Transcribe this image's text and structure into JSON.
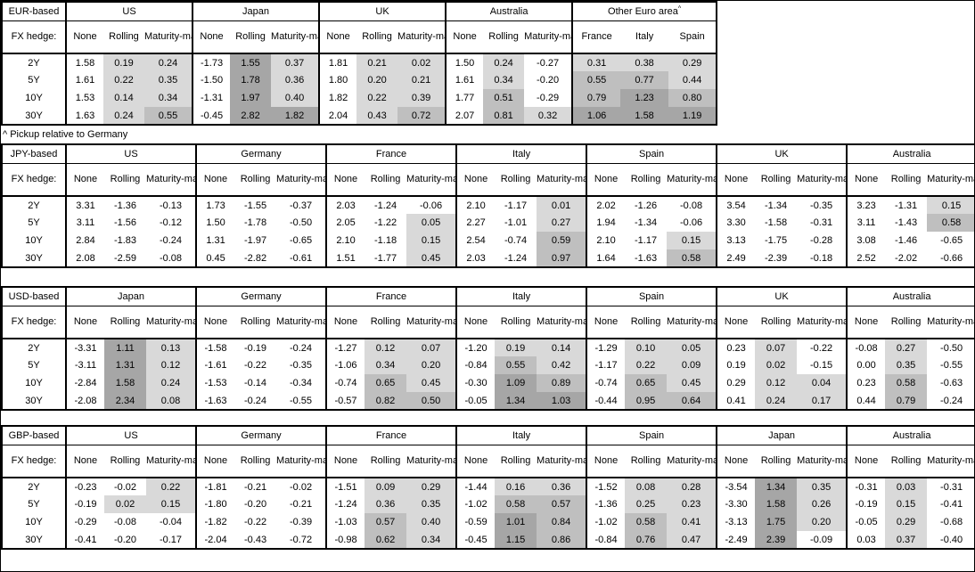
{
  "note": "^ Pickup relative to Germany",
  "labels": {
    "fx_hedge": "FX hedge:",
    "tenors": [
      "2Y",
      "5Y",
      "10Y",
      "30Y"
    ],
    "sub_columns": [
      "None",
      "Rolling",
      "Maturity-matched"
    ]
  },
  "heatmap": {
    "colors": {
      "light": "#d9d9d9",
      "medium": "#bfbfbf",
      "dark": "#a6a6a6",
      "none": "#ffffff"
    },
    "thresholds": {
      "light": 0,
      "medium": 0.5,
      "dark": 1.0
    },
    "rule": "Rolling, Maturity-matched and Other-Euro-area cells shaded by value; None column unshaded"
  },
  "chart_data": [
    {
      "type": "heatmap-table",
      "base": "EUR-based",
      "groups": [
        {
          "name": "US",
          "rows": [
            [
              "1.58",
              "0.19",
              "0.24"
            ],
            [
              "1.61",
              "0.22",
              "0.35"
            ],
            [
              "1.53",
              "0.14",
              "0.34"
            ],
            [
              "1.63",
              "0.24",
              "0.55"
            ]
          ]
        },
        {
          "name": "Japan",
          "rows": [
            [
              "-1.73",
              "1.55",
              "0.37"
            ],
            [
              "-1.50",
              "1.78",
              "0.36"
            ],
            [
              "-1.31",
              "1.97",
              "0.40"
            ],
            [
              "-0.45",
              "2.82",
              "1.82"
            ]
          ]
        },
        {
          "name": "UK",
          "rows": [
            [
              "1.81",
              "0.21",
              "0.02"
            ],
            [
              "1.80",
              "0.20",
              "0.21"
            ],
            [
              "1.82",
              "0.22",
              "0.39"
            ],
            [
              "2.04",
              "0.43",
              "0.72"
            ]
          ]
        },
        {
          "name": "Australia",
          "rows": [
            [
              "1.50",
              "0.24",
              "-0.27"
            ],
            [
              "1.61",
              "0.34",
              "-0.20"
            ],
            [
              "1.77",
              "0.51",
              "-0.29"
            ],
            [
              "2.07",
              "0.81",
              "0.32"
            ]
          ]
        },
        {
          "name": "Other Euro area",
          "footnote_marker": "^",
          "columns": [
            "France",
            "Italy",
            "Spain"
          ],
          "rows": [
            [
              "0.31",
              "0.38",
              "0.29"
            ],
            [
              "0.55",
              "0.77",
              "0.44"
            ],
            [
              "0.79",
              "1.23",
              "0.80"
            ],
            [
              "1.06",
              "1.58",
              "1.19"
            ]
          ]
        }
      ]
    },
    {
      "type": "heatmap-table",
      "base": "JPY-based",
      "groups": [
        {
          "name": "US",
          "rows": [
            [
              "3.31",
              "-1.36",
              "-0.13"
            ],
            [
              "3.11",
              "-1.56",
              "-0.12"
            ],
            [
              "2.84",
              "-1.83",
              "-0.24"
            ],
            [
              "2.08",
              "-2.59",
              "-0.08"
            ]
          ]
        },
        {
          "name": "Germany",
          "rows": [
            [
              "1.73",
              "-1.55",
              "-0.37"
            ],
            [
              "1.50",
              "-1.78",
              "-0.50"
            ],
            [
              "1.31",
              "-1.97",
              "-0.65"
            ],
            [
              "0.45",
              "-2.82",
              "-0.61"
            ]
          ]
        },
        {
          "name": "France",
          "rows": [
            [
              "2.03",
              "-1.24",
              "-0.06"
            ],
            [
              "2.05",
              "-1.22",
              "0.05"
            ],
            [
              "2.10",
              "-1.18",
              "0.15"
            ],
            [
              "1.51",
              "-1.77",
              "0.45"
            ]
          ]
        },
        {
          "name": "Italy",
          "rows": [
            [
              "2.10",
              "-1.17",
              "0.01"
            ],
            [
              "2.27",
              "-1.01",
              "0.27"
            ],
            [
              "2.54",
              "-0.74",
              "0.59"
            ],
            [
              "2.03",
              "-1.24",
              "0.97"
            ]
          ]
        },
        {
          "name": "Spain",
          "rows": [
            [
              "2.02",
              "-1.26",
              "-0.08"
            ],
            [
              "1.94",
              "-1.34",
              "-0.06"
            ],
            [
              "2.10",
              "-1.17",
              "0.15"
            ],
            [
              "1.64",
              "-1.63",
              "0.58"
            ]
          ]
        },
        {
          "name": "UK",
          "rows": [
            [
              "3.54",
              "-1.34",
              "-0.35"
            ],
            [
              "3.30",
              "-1.58",
              "-0.31"
            ],
            [
              "3.13",
              "-1.75",
              "-0.28"
            ],
            [
              "2.49",
              "-2.39",
              "-0.18"
            ]
          ]
        },
        {
          "name": "Australia",
          "rows": [
            [
              "3.23",
              "-1.31",
              "0.15"
            ],
            [
              "3.11",
              "-1.43",
              "0.58"
            ],
            [
              "3.08",
              "-1.46",
              "-0.65"
            ],
            [
              "2.52",
              "-2.02",
              "-0.66"
            ]
          ]
        }
      ]
    },
    {
      "type": "heatmap-table",
      "base": "USD-based",
      "groups": [
        {
          "name": "Japan",
          "rows": [
            [
              "-3.31",
              "1.11",
              "0.13"
            ],
            [
              "-3.11",
              "1.31",
              "0.12"
            ],
            [
              "-2.84",
              "1.58",
              "0.24"
            ],
            [
              "-2.08",
              "2.34",
              "0.08"
            ]
          ]
        },
        {
          "name": "Germany",
          "rows": [
            [
              "-1.58",
              "-0.19",
              "-0.24"
            ],
            [
              "-1.61",
              "-0.22",
              "-0.35"
            ],
            [
              "-1.53",
              "-0.14",
              "-0.34"
            ],
            [
              "-1.63",
              "-0.24",
              "-0.55"
            ]
          ]
        },
        {
          "name": "France",
          "rows": [
            [
              "-1.27",
              "0.12",
              "0.07"
            ],
            [
              "-1.06",
              "0.34",
              "0.20"
            ],
            [
              "-0.74",
              "0.65",
              "0.45"
            ],
            [
              "-0.57",
              "0.82",
              "0.50"
            ]
          ]
        },
        {
          "name": "Italy",
          "rows": [
            [
              "-1.20",
              "0.19",
              "0.14"
            ],
            [
              "-0.84",
              "0.55",
              "0.42"
            ],
            [
              "-0.30",
              "1.09",
              "0.89"
            ],
            [
              "-0.05",
              "1.34",
              "1.03"
            ]
          ]
        },
        {
          "name": "Spain",
          "rows": [
            [
              "-1.29",
              "0.10",
              "0.05"
            ],
            [
              "-1.17",
              "0.22",
              "0.09"
            ],
            [
              "-0.74",
              "0.65",
              "0.45"
            ],
            [
              "-0.44",
              "0.95",
              "0.64"
            ]
          ]
        },
        {
          "name": "UK",
          "rows": [
            [
              "0.23",
              "0.07",
              "-0.22"
            ],
            [
              "0.19",
              "0.02",
              "-0.15"
            ],
            [
              "0.29",
              "0.12",
              "0.04"
            ],
            [
              "0.41",
              "0.24",
              "0.17"
            ]
          ]
        },
        {
          "name": "Australia",
          "rows": [
            [
              "-0.08",
              "0.27",
              "-0.50"
            ],
            [
              "0.00",
              "0.35",
              "-0.55"
            ],
            [
              "0.23",
              "0.58",
              "-0.63"
            ],
            [
              "0.44",
              "0.79",
              "-0.24"
            ]
          ]
        }
      ]
    },
    {
      "type": "heatmap-table",
      "base": "GBP-based",
      "groups": [
        {
          "name": "US",
          "rows": [
            [
              "-0.23",
              "-0.02",
              "0.22"
            ],
            [
              "-0.19",
              "0.02",
              "0.15"
            ],
            [
              "-0.29",
              "-0.08",
              "-0.04"
            ],
            [
              "-0.41",
              "-0.20",
              "-0.17"
            ]
          ]
        },
        {
          "name": "Germany",
          "rows": [
            [
              "-1.81",
              "-0.21",
              "-0.02"
            ],
            [
              "-1.80",
              "-0.20",
              "-0.21"
            ],
            [
              "-1.82",
              "-0.22",
              "-0.39"
            ],
            [
              "-2.04",
              "-0.43",
              "-0.72"
            ]
          ]
        },
        {
          "name": "France",
          "rows": [
            [
              "-1.51",
              "0.09",
              "0.29"
            ],
            [
              "-1.24",
              "0.36",
              "0.35"
            ],
            [
              "-1.03",
              "0.57",
              "0.40"
            ],
            [
              "-0.98",
              "0.62",
              "0.34"
            ]
          ]
        },
        {
          "name": "Italy",
          "rows": [
            [
              "-1.44",
              "0.16",
              "0.36"
            ],
            [
              "-1.02",
              "0.58",
              "0.57"
            ],
            [
              "-0.59",
              "1.01",
              "0.84"
            ],
            [
              "-0.45",
              "1.15",
              "0.86"
            ]
          ]
        },
        {
          "name": "Spain",
          "rows": [
            [
              "-1.52",
              "0.08",
              "0.28"
            ],
            [
              "-1.36",
              "0.25",
              "0.23"
            ],
            [
              "-1.02",
              "0.58",
              "0.41"
            ],
            [
              "-0.84",
              "0.76",
              "0.47"
            ]
          ]
        },
        {
          "name": "Japan",
          "rows": [
            [
              "-3.54",
              "1.34",
              "0.35"
            ],
            [
              "-3.30",
              "1.58",
              "0.26"
            ],
            [
              "-3.13",
              "1.75",
              "0.20"
            ],
            [
              "-2.49",
              "2.39",
              "-0.09"
            ]
          ]
        },
        {
          "name": "Australia",
          "rows": [
            [
              "-0.31",
              "0.03",
              "-0.31"
            ],
            [
              "-0.19",
              "0.15",
              "-0.41"
            ],
            [
              "-0.05",
              "0.29",
              "-0.68"
            ],
            [
              "0.03",
              "0.37",
              "-0.40"
            ]
          ]
        }
      ]
    }
  ]
}
